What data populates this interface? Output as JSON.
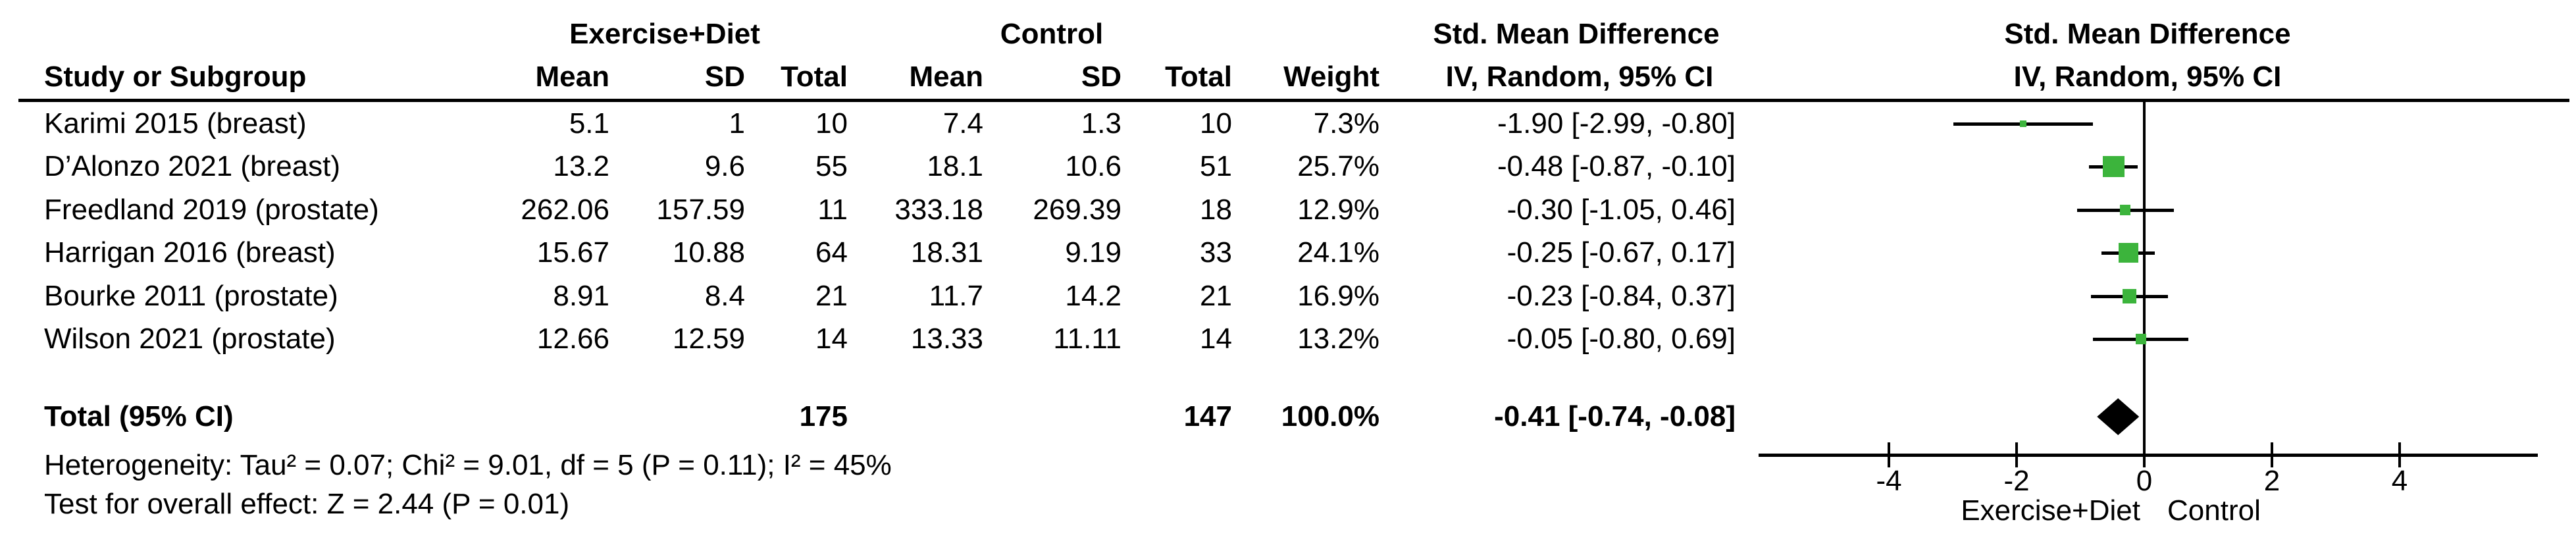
{
  "figure": {
    "kind": "forest-plot (meta-analysis, RevMan style)"
  },
  "header": {
    "group1": "Exercise+Diet",
    "group2": "Control",
    "effect": "Std. Mean Difference",
    "effect_plot": "Std. Mean Difference",
    "study_col": "Study or Subgroup",
    "mean1_col": "Mean",
    "sd1_col": "SD",
    "total1_col": "Total",
    "mean2_col": "Mean",
    "sd2_col": "SD",
    "total2_col": "Total",
    "weight_col": "Weight",
    "iv_col": "IV, Random, 95% CI",
    "iv_plot_col": "IV, Random, 95% CI"
  },
  "table": {
    "rows": [
      {
        "study": "Karimi 2015 (breast)",
        "mean1": "5.1",
        "sd1": "1",
        "total1": "10",
        "mean2": "7.4",
        "sd2": "1.3",
        "total2": "10",
        "weight": "7.3%",
        "ci": "-1.90 [-2.99, -0.80]"
      },
      {
        "study": "D’Alonzo 2021 (breast)",
        "mean1": "13.2",
        "sd1": "9.6",
        "total1": "55",
        "mean2": "18.1",
        "sd2": "10.6",
        "total2": "51",
        "weight": "25.7%",
        "ci": "-0.48 [-0.87, -0.10]"
      },
      {
        "study": "Freedland 2019 (prostate)",
        "mean1": "262.06",
        "sd1": "157.59",
        "total1": "11",
        "mean2": "333.18",
        "sd2": "269.39",
        "total2": "18",
        "weight": "12.9%",
        "ci": "-0.30 [-1.05, 0.46]"
      },
      {
        "study": "Harrigan 2016 (breast)",
        "mean1": "15.67",
        "sd1": "10.88",
        "total1": "64",
        "mean2": "18.31",
        "sd2": "9.19",
        "total2": "33",
        "weight": "24.1%",
        "ci": "-0.25 [-0.67, 0.17]"
      },
      {
        "study": "Bourke 2011 (prostate)",
        "mean1": "8.91",
        "sd1": "8.4",
        "total1": "21",
        "mean2": "11.7",
        "sd2": "14.2",
        "total2": "21",
        "weight": "16.9%",
        "ci": "-0.23 [-0.84, 0.37]"
      },
      {
        "study": "Wilson 2021 (prostate)",
        "mean1": "12.66",
        "sd1": "12.59",
        "total1": "14",
        "mean2": "13.33",
        "sd2": "11.11",
        "total2": "14",
        "weight": "13.2%",
        "ci": "-0.05 [-0.80, 0.69]"
      }
    ],
    "total_row": {
      "label": "Total (95% CI)",
      "total1": "175",
      "total2": "147",
      "weight": "100.0%",
      "ci": "-0.41 [-0.74, -0.08]"
    }
  },
  "stats": {
    "heterogeneity": "Heterogeneity: Tau² = 0.07; Chi² = 9.01, df = 5 (P = 0.11); I² = 45%",
    "overall_effect": "Test for overall effect: Z = 2.44 (P = 0.01)"
  },
  "chart_data": {
    "type": "scatter",
    "subtype": "forest",
    "title": "Std. Mean Difference",
    "effect_model": "IV, Random, 95% CI",
    "x_ticks": [
      -4,
      -2,
      0,
      2,
      4
    ],
    "x_tick_labels": [
      "-4",
      "-2",
      "0",
      "2",
      "4"
    ],
    "xlim": [
      -6.0,
      6.2
    ],
    "axis_label_left": "Exercise+Diet",
    "axis_label_right": "Control",
    "marker_color": "#3cb43c",
    "line_color": "#000000",
    "studies": [
      {
        "name": "Karimi 2015 (breast)",
        "smd": -1.9,
        "ci_low": -2.99,
        "ci_high": -0.8,
        "weight": 7.3
      },
      {
        "name": "D’Alonzo 2021 (breast)",
        "smd": -0.48,
        "ci_low": -0.87,
        "ci_high": -0.1,
        "weight": 25.7
      },
      {
        "name": "Freedland 2019 (prostate)",
        "smd": -0.3,
        "ci_low": -1.05,
        "ci_high": 0.46,
        "weight": 12.9
      },
      {
        "name": "Harrigan 2016 (breast)",
        "smd": -0.25,
        "ci_low": -0.67,
        "ci_high": 0.17,
        "weight": 24.1
      },
      {
        "name": "Bourke 2011 (prostate)",
        "smd": -0.23,
        "ci_low": -0.84,
        "ci_high": 0.37,
        "weight": 16.9
      },
      {
        "name": "Wilson 2021 (prostate)",
        "smd": -0.05,
        "ci_low": -0.8,
        "ci_high": 0.69,
        "weight": 13.2
      }
    ],
    "overall": {
      "name": "Total (95% CI)",
      "smd": -0.41,
      "ci_low": -0.74,
      "ci_high": -0.08,
      "total1": 175,
      "total2": 147,
      "weight": 100.0
    }
  }
}
